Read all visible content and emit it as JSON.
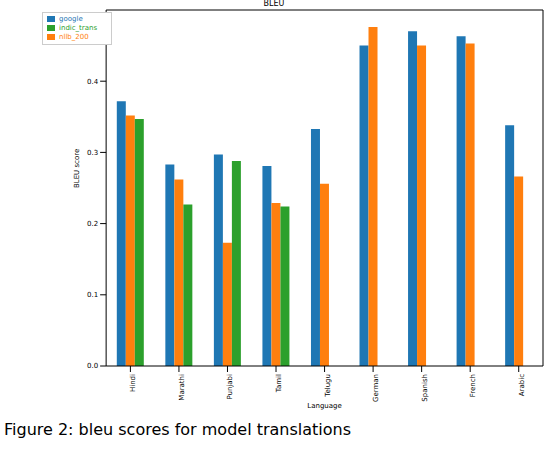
{
  "chart_data": {
    "type": "bar",
    "title": "BLEU",
    "x_label": "Language",
    "y_label": "BLEU score",
    "caption": "Figure 2: bleu scores for model translations",
    "categories": [
      "Hindi",
      "Marathi",
      "Punjabi",
      "Tamil",
      "Telugu",
      "German",
      "Spanish",
      "French",
      "Arabic"
    ],
    "series": [
      {
        "name": "google",
        "color": "#1f77b4",
        "values": [
          0.372,
          0.283,
          0.297,
          0.281,
          0.333,
          0.45,
          0.47,
          0.463,
          0.338
        ]
      },
      {
        "name": "nllb_200",
        "color": "#ff7f0e",
        "values": [
          0.352,
          0.262,
          0.173,
          0.229,
          0.256,
          0.476,
          0.45,
          0.453,
          0.266
        ]
      },
      {
        "name": "indic_trans",
        "color": "#2ca02c",
        "values": [
          0.347,
          0.227,
          0.288,
          0.224,
          null,
          null,
          null,
          null,
          null
        ]
      }
    ],
    "ylim": [
      0,
      0.5
    ],
    "yticks": [
      {
        "value": 0,
        "label": "0.0"
      },
      0.1,
      0.2,
      0.3,
      0.4
    ],
    "legend": "upper left",
    "grid": false
  }
}
